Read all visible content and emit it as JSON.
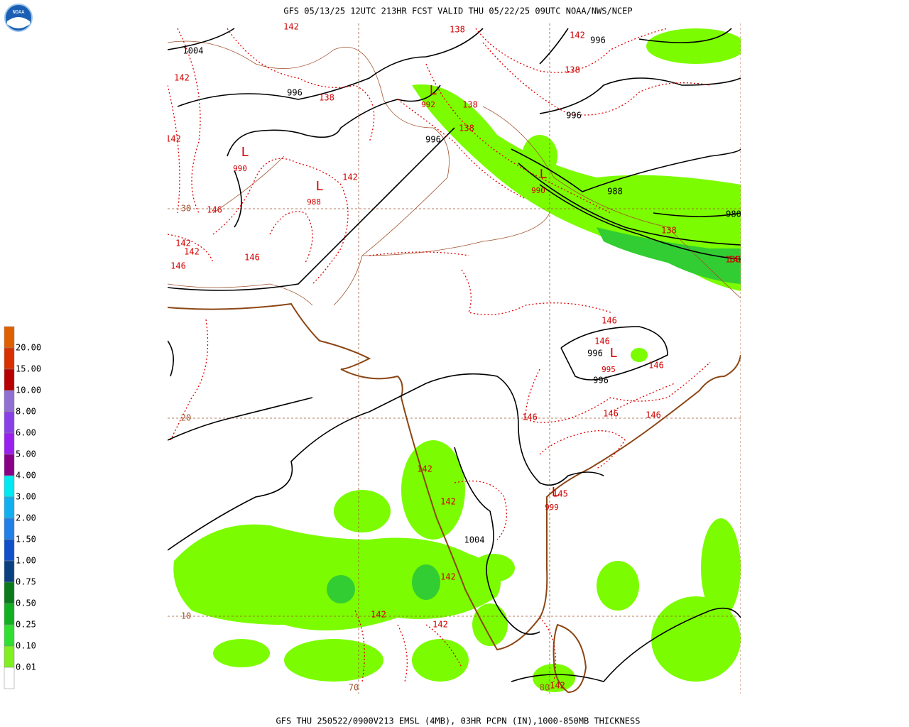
{
  "header": {
    "title": "GFS 05/13/25 12UTC 213HR FCST VALID THU 05/22/25 09UTC NOAA/NWS/NCEP",
    "logo": "NOAA"
  },
  "footer": {
    "text": "GFS THU 250522/0900V213 EMSL (4MB), 03HR PCPN (IN),1000-850MB THICKNESS"
  },
  "legend": {
    "labels": [
      "20.00",
      "15.00",
      "10.00",
      "8.00",
      "6.00",
      "5.00",
      "4.00",
      "3.00",
      "2.00",
      "1.50",
      "1.00",
      "0.75",
      "0.50",
      "0.25",
      "0.10",
      "0.01"
    ]
  },
  "map": {
    "lat_labels": [
      "30",
      "20",
      "10"
    ],
    "lon_labels": [
      "70",
      "80"
    ],
    "pressure_labels": [
      "1004",
      "996",
      "996",
      "996",
      "996",
      "988",
      "980",
      "996",
      "996",
      "1004"
    ],
    "lows": [
      {
        "symbol": "L",
        "pressure": "990"
      },
      {
        "symbol": "L",
        "pressure": "988"
      },
      {
        "symbol": "L",
        "pressure": "992"
      },
      {
        "symbol": "L",
        "pressure": "990"
      },
      {
        "symbol": "L",
        "pressure": "995"
      },
      {
        "symbol": "L",
        "pressure": "999"
      }
    ],
    "thickness_labels": [
      "142",
      "138",
      "142",
      "138",
      "142",
      "138",
      "138",
      "138",
      "142",
      "142",
      "138",
      "146",
      "142",
      "142",
      "146",
      "146",
      "138",
      "146",
      "146",
      "146",
      "146",
      "146",
      "146",
      "142",
      "142",
      "142",
      "142",
      "142",
      "142",
      "145",
      "142"
    ]
  }
}
